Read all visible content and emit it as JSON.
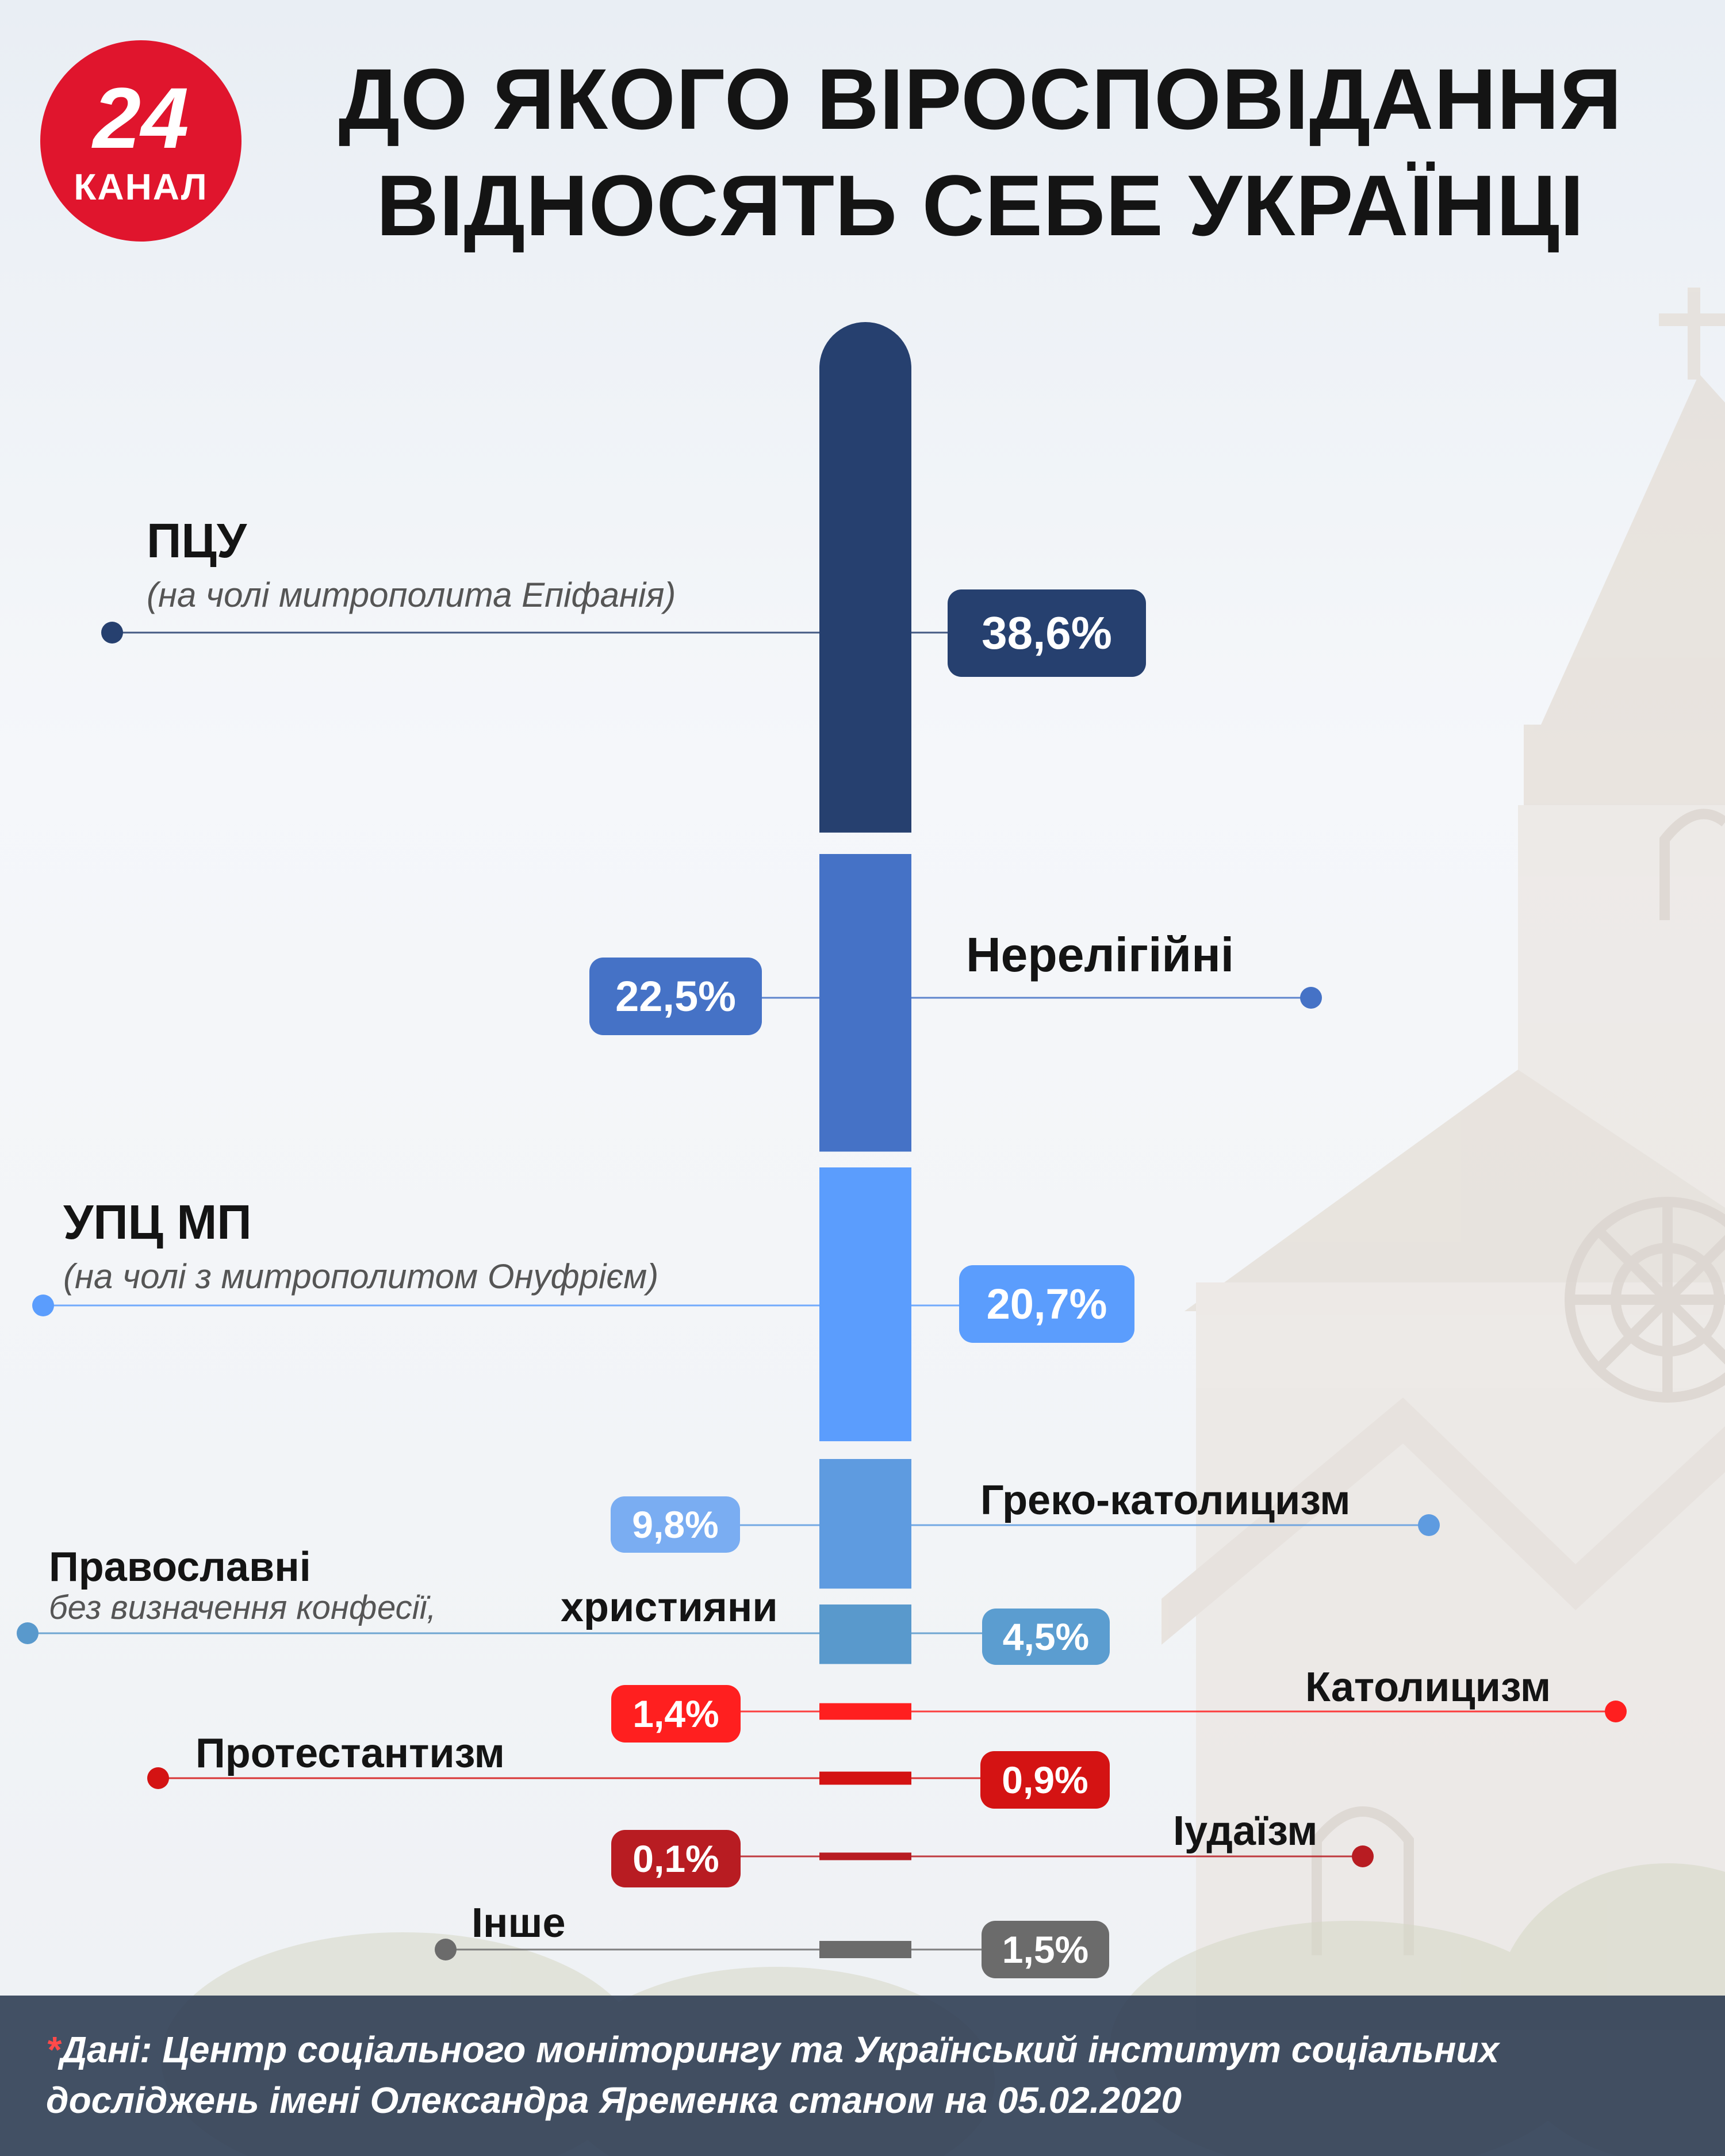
{
  "header": {
    "logo_number": "24",
    "logo_word": "КАНАЛ",
    "title_line1": "ДО ЯКОГО ВІРОСПОВІДАННЯ",
    "title_line2": "ВІДНОСЯТЬ СЕБЕ УКРАЇНЦІ"
  },
  "chart_data": {
    "type": "bar",
    "orientation": "stacked-vertical",
    "title": "ДО ЯКОГО ВІРОСПОВІДАННЯ ВІДНОСЯТЬ СЕБЕ УКРАЇНЦІ",
    "unit": "%",
    "categories": [
      {
        "name": "ПЦУ",
        "note": "(на чолі митрополита Епіфанія)",
        "value": 38.6,
        "value_label": "38,6%",
        "color": "#26406f"
      },
      {
        "name": "Нерелігійні",
        "note": "",
        "value": 22.5,
        "value_label": "22,5%",
        "color": "#4572c6"
      },
      {
        "name": "УПЦ МП",
        "note": "(на чолі з митрополитом Онуфрієм)",
        "value": 20.7,
        "value_label": "20,7%",
        "color": "#5b9dfd"
      },
      {
        "name": "Греко-католицизм",
        "note": "",
        "value": 9.8,
        "value_label": "9,8%",
        "color": "#5e9be0"
      },
      {
        "name": "Православні",
        "name_suffix": "християни",
        "note": "без визначення конфесії,",
        "value": 4.5,
        "value_label": "4,5%",
        "color": "#5999cc"
      },
      {
        "name": "Католицизм",
        "note": "",
        "value": 1.4,
        "value_label": "1,4%",
        "color": "#ff1f1f"
      },
      {
        "name": "Протестантизм",
        "note": "",
        "value": 0.9,
        "value_label": "0,9%",
        "color": "#d41313"
      },
      {
        "name": "Іудаїзм",
        "note": "",
        "value": 0.1,
        "value_label": "0,1%",
        "color": "#b81c22"
      },
      {
        "name": "Інше",
        "note": "",
        "value": 1.5,
        "value_label": "1,5%",
        "color": "#6b6b6b"
      }
    ]
  },
  "footnote": {
    "star": "*",
    "text": "Дані: Центр соціального моніторингу та Український інститут соціальних досліджень імені Олександра Яременка станом на 05.02.2020"
  }
}
